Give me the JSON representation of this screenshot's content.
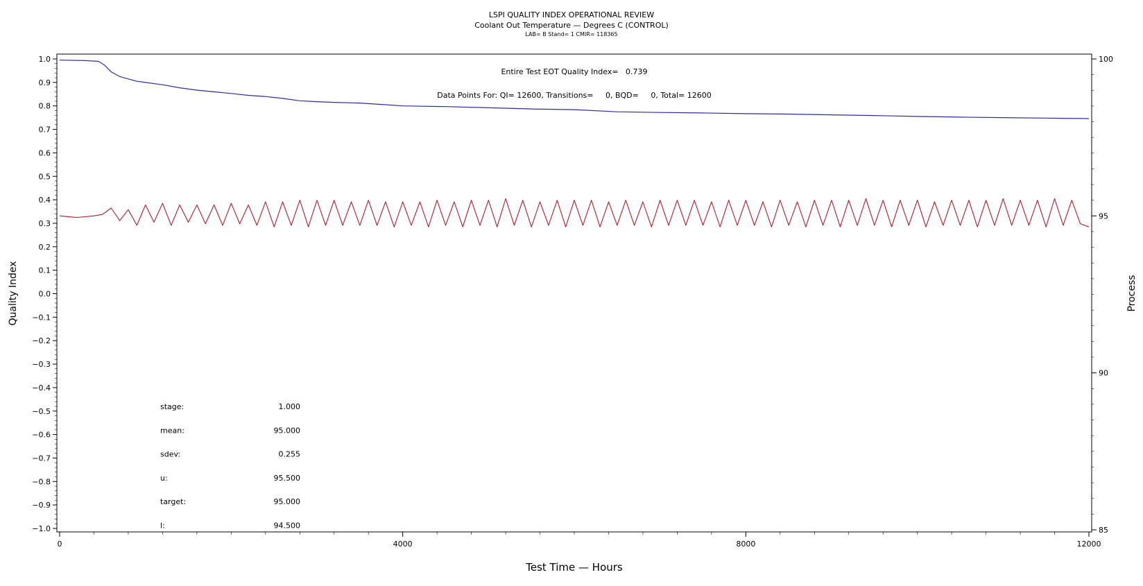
{
  "chart_data": {
    "type": "line",
    "title": "LSPI QUALITY INDEX OPERATIONAL REVIEW",
    "subtitle": "Coolant Out Temperature — Degrees C (CONTROL)",
    "subtitle2": "LAB= B Stand= 1 CMIR= 118365",
    "xlabel": "Test Time — Hours",
    "ylabel": "Quality Index",
    "y2label": "Process",
    "xlim": [
      0,
      12000
    ],
    "ylim": [
      -1.0,
      1.0
    ],
    "y2lim": [
      85,
      100
    ],
    "xticks": [
      0,
      4000,
      8000,
      12000
    ],
    "xtick_labels": [
      "0",
      "4000",
      "8000",
      "12000"
    ],
    "yticks": [
      1.0,
      0.9,
      0.8,
      0.7,
      0.6,
      0.5,
      0.4,
      0.3,
      0.2,
      0.1,
      0.0,
      -0.1,
      -0.2,
      -0.3,
      -0.4,
      -0.5,
      -0.6,
      -0.7,
      -0.8,
      -0.9,
      -1.0
    ],
    "ytick_labels": [
      "1.0",
      "0.9",
      "0.8",
      "0.7",
      "0.6",
      "0.5",
      "0.4",
      "0.3",
      "0.2",
      "0.1",
      "0.0",
      "−0.1",
      "−0.2",
      "−0.3",
      "−0.4",
      "−0.5",
      "−0.6",
      "−0.7",
      "−0.8",
      "−0.9",
      "−1.0"
    ],
    "y2ticks": [
      100,
      95,
      90,
      85
    ],
    "y2tick_labels": [
      "100",
      "95",
      "90",
      "85"
    ],
    "grid": false,
    "annotations": {
      "eot_line": "Entire Test EOT Quality Index=   0.739",
      "points_line": "Data Points For: QI= 12600, Transitions=     0, BQD=     0, Total= 12600"
    },
    "stats": [
      {
        "label": "stage:",
        "value": "1.000"
      },
      {
        "label": "mean:",
        "value": "95.000"
      },
      {
        "label": "sdev:",
        "value": "0.255"
      },
      {
        "label": "u:",
        "value": "95.500"
      },
      {
        "label": "target:",
        "value": "95.000"
      },
      {
        "label": "l:",
        "value": "94.500"
      }
    ],
    "series": [
      {
        "axis": "left",
        "color": "#2a2aa8",
        "x": [
          0,
          300,
          450,
          520,
          600,
          700,
          800,
          900,
          1000,
          1200,
          1400,
          1600,
          1800,
          2000,
          2200,
          2400,
          2600,
          2800,
          3000,
          3200,
          3500,
          3800,
          4000,
          4500,
          5000,
          5500,
          6000,
          6500,
          7000,
          7500,
          8000,
          8500,
          9000,
          9500,
          10000,
          10500,
          11000,
          11500,
          12000
        ],
        "values": [
          0.995,
          0.993,
          0.99,
          0.975,
          0.945,
          0.925,
          0.915,
          0.905,
          0.9,
          0.89,
          0.877,
          0.867,
          0.86,
          0.853,
          0.845,
          0.84,
          0.832,
          0.822,
          0.818,
          0.815,
          0.812,
          0.805,
          0.8,
          0.797,
          0.792,
          0.787,
          0.784,
          0.775,
          0.772,
          0.77,
          0.767,
          0.765,
          0.762,
          0.759,
          0.755,
          0.752,
          0.75,
          0.748,
          0.746
        ]
      },
      {
        "axis": "right",
        "color": "#b01c2e",
        "x": [
          0,
          200,
          400,
          500,
          600,
          700,
          800,
          900,
          1000,
          1100,
          1200,
          1300,
          1400,
          1500,
          1600,
          1700,
          1800,
          1900,
          2000,
          2100,
          2200,
          2300,
          2400,
          2500,
          2600,
          2700,
          2800,
          2900,
          3000,
          3100,
          3200,
          3300,
          3400,
          3500,
          3600,
          3700,
          3800,
          3900,
          4000,
          4100,
          4200,
          4300,
          4400,
          4500,
          4600,
          4700,
          4800,
          4900,
          5000,
          5100,
          5200,
          5300,
          5400,
          5500,
          5600,
          5700,
          5800,
          5900,
          6000,
          6100,
          6200,
          6300,
          6400,
          6500,
          6600,
          6700,
          6800,
          6900,
          7000,
          7100,
          7200,
          7300,
          7400,
          7500,
          7600,
          7700,
          7800,
          7900,
          8000,
          8100,
          8200,
          8300,
          8400,
          8500,
          8600,
          8700,
          8800,
          8900,
          9000,
          9100,
          9200,
          9300,
          9400,
          9500,
          9600,
          9700,
          9800,
          9900,
          10000,
          10100,
          10200,
          10300,
          10400,
          10500,
          10600,
          10700,
          10800,
          10900,
          11000,
          11100,
          11200,
          11300,
          11400,
          11500,
          11600,
          11700,
          11800,
          11900,
          12000
        ],
        "values": [
          95.0,
          94.95,
          95.0,
          95.05,
          95.25,
          94.85,
          95.2,
          94.7,
          95.35,
          94.8,
          95.4,
          94.7,
          95.35,
          94.8,
          95.35,
          94.75,
          95.35,
          94.7,
          95.4,
          94.75,
          95.35,
          94.7,
          95.45,
          94.65,
          95.45,
          94.7,
          95.5,
          94.65,
          95.5,
          94.7,
          95.5,
          94.7,
          95.45,
          94.7,
          95.5,
          94.7,
          95.45,
          94.65,
          95.45,
          94.7,
          95.45,
          94.65,
          95.5,
          94.7,
          95.45,
          94.65,
          95.5,
          94.7,
          95.5,
          94.65,
          95.55,
          94.7,
          95.5,
          94.65,
          95.45,
          94.7,
          95.5,
          94.65,
          95.5,
          94.7,
          95.5,
          94.65,
          95.45,
          94.7,
          95.5,
          94.7,
          95.45,
          94.65,
          95.5,
          94.7,
          95.5,
          94.7,
          95.5,
          94.7,
          95.45,
          94.65,
          95.5,
          94.7,
          95.5,
          94.7,
          95.45,
          94.65,
          95.5,
          94.7,
          95.45,
          94.65,
          95.5,
          94.7,
          95.5,
          94.65,
          95.5,
          94.7,
          95.55,
          94.7,
          95.5,
          94.65,
          95.5,
          94.7,
          95.5,
          94.65,
          95.45,
          94.7,
          95.5,
          94.7,
          95.5,
          94.65,
          95.5,
          94.7,
          95.55,
          94.7,
          95.5,
          94.7,
          95.5,
          94.65,
          95.55,
          94.7,
          95.5,
          94.75,
          94.65
        ]
      }
    ]
  }
}
